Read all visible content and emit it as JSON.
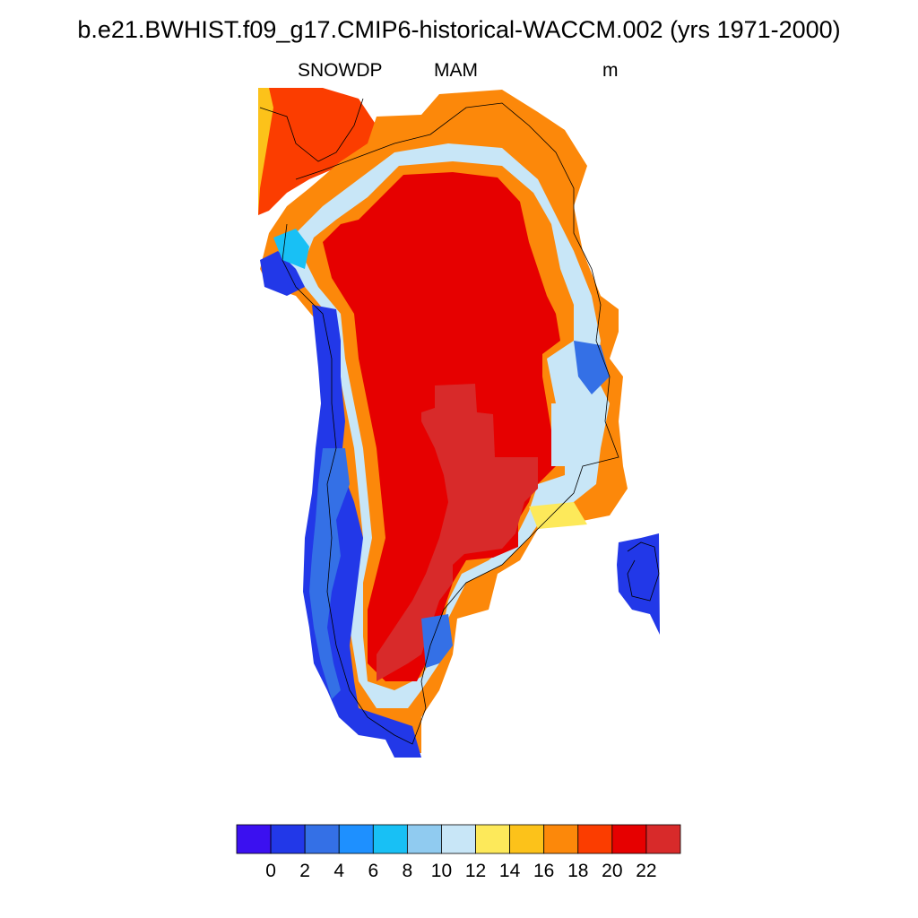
{
  "title": "b.e21.BWHIST.f09_g17.CMIP6-historical-WACCM.002 (yrs 1971-2000)",
  "variable": "SNOWDP",
  "season": "MAM",
  "units": "m",
  "colorbar": {
    "colors": [
      "#3b10f0",
      "#2238e8",
      "#3470e6",
      "#1e90ff",
      "#18c0f5",
      "#90cbf0",
      "#c8e6f7",
      "#fde95a",
      "#fcc21a",
      "#fc880a",
      "#fb3d00",
      "#e60000",
      "#d82a2a"
    ],
    "tick_labels": [
      "0",
      "2",
      "4",
      "6",
      "8",
      "10",
      "12",
      "14",
      "16",
      "18",
      "20",
      "22"
    ]
  },
  "map_layers": [
    {
      "value_class": "20-22",
      "color": "#e60000"
    },
    {
      "value_class": ">22",
      "color": "#d82a2a"
    },
    {
      "value_class": "0-2",
      "color": "#2238e8"
    },
    {
      "value_class": "coast",
      "color": "#000000"
    }
  ]
}
